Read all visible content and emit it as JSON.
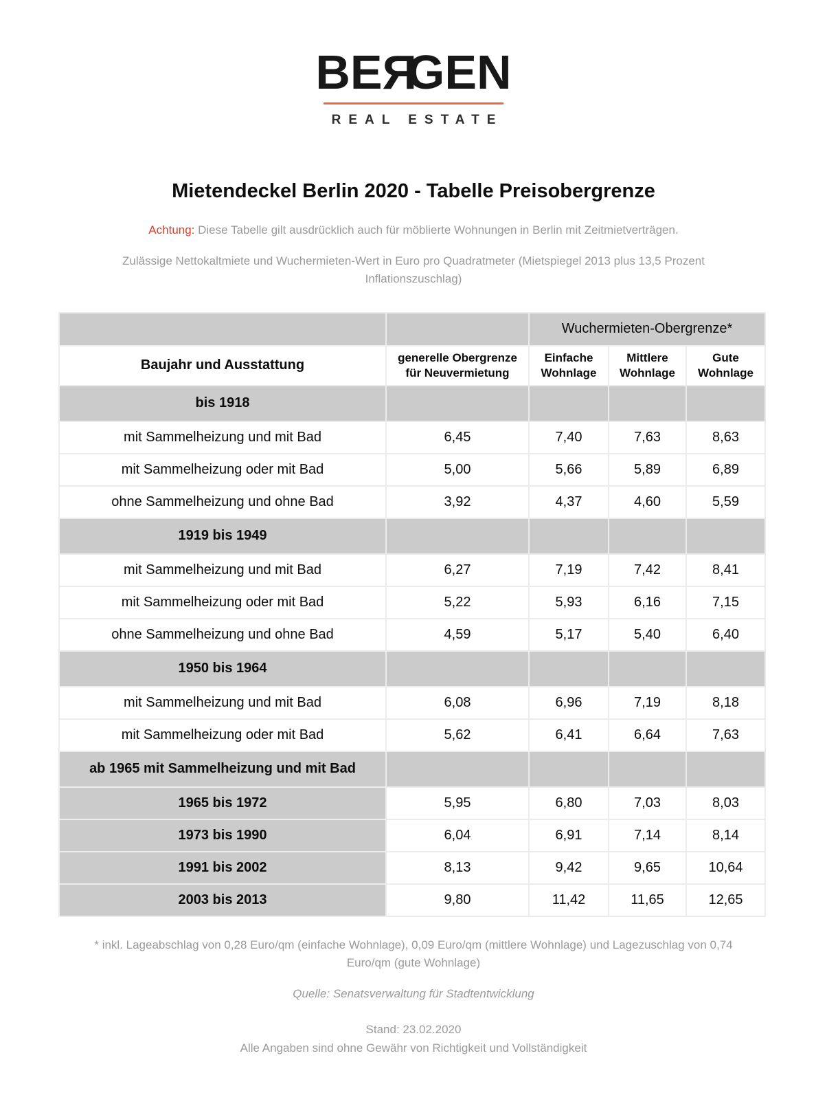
{
  "logo": {
    "part1": "BE",
    "part2": "Я",
    "part3": "GEN",
    "subtitle": "REAL ESTATE",
    "underline_color": "#ed6a45"
  },
  "header": {
    "title": "Mietendeckel Berlin 2020 - Tabelle Preisobergrenze",
    "warning_label": "Achtung:",
    "warning_text": " Diese Tabelle gilt ausdrücklich auch für möblierte Wohnungen in Berlin mit Zeitmietverträgen.",
    "subtitle": "Zulässige Nettokaltmiete und Wuchermieten-Wert in Euro pro Quadratmeter (Mietspiegel 2013 plus 13,5 Prozent Inflationszuschlag)",
    "warning_color": "#e63b25"
  },
  "table": {
    "group_header": "Wuchermieten-Obergrenze*",
    "header_bg": "#cbcbcb",
    "columns": [
      "Baujahr und Ausstattung",
      "generelle Obergrenze für Neuvermietung",
      "Einfache Wohnlage",
      "Mittlere Wohnlage",
      "Gute Wohnlage"
    ],
    "rows": [
      {
        "type": "section",
        "label": "bis 1918"
      },
      {
        "type": "data",
        "label": "mit Sammelheizung und mit Bad",
        "values": [
          "6,45",
          "7,40",
          "7,63",
          "8,63"
        ]
      },
      {
        "type": "data",
        "label": "mit Sammelheizung oder mit Bad",
        "values": [
          "5,00",
          "5,66",
          "5,89",
          "6,89"
        ]
      },
      {
        "type": "data",
        "label": "ohne Sammelheizung und ohne Bad",
        "values": [
          "3,92",
          "4,37",
          "4,60",
          "5,59"
        ]
      },
      {
        "type": "section",
        "label": "1919 bis 1949"
      },
      {
        "type": "data",
        "label": "mit Sammelheizung und mit Bad",
        "values": [
          "6,27",
          "7,19",
          "7,42",
          "8,41"
        ]
      },
      {
        "type": "data",
        "label": "mit Sammelheizung oder mit Bad",
        "values": [
          "5,22",
          "5,93",
          "6,16",
          "7,15"
        ]
      },
      {
        "type": "data",
        "label": "ohne Sammelheizung und ohne Bad",
        "values": [
          "4,59",
          "5,17",
          "5,40",
          "6,40"
        ]
      },
      {
        "type": "section",
        "label": "1950 bis 1964"
      },
      {
        "type": "data",
        "label": "mit Sammelheizung und mit Bad",
        "values": [
          "6,08",
          "6,96",
          "7,19",
          "8,18"
        ]
      },
      {
        "type": "data",
        "label": "mit Sammelheizung oder mit Bad",
        "values": [
          "5,62",
          "6,41",
          "6,64",
          "7,63"
        ]
      },
      {
        "type": "section",
        "label": "ab 1965 mit Sammelheizung und mit Bad"
      },
      {
        "type": "data",
        "label": "1965 bis 1972",
        "label_gray": true,
        "values": [
          "5,95",
          "6,80",
          "7,03",
          "8,03"
        ]
      },
      {
        "type": "data",
        "label": "1973 bis 1990",
        "label_gray": true,
        "values": [
          "6,04",
          "6,91",
          "7,14",
          "8,14"
        ]
      },
      {
        "type": "data",
        "label": "1991 bis 2002",
        "label_gray": true,
        "values": [
          "8,13",
          "9,42",
          "9,65",
          "10,64"
        ]
      },
      {
        "type": "data",
        "label": "2003 bis 2013",
        "label_gray": true,
        "values": [
          "9,80",
          "11,42",
          "11,65",
          "12,65"
        ]
      }
    ]
  },
  "footer": {
    "footnote": "* inkl. Lageabschlag von 0,28 Euro/qm (einfache Wohnlage), 0,09 Euro/qm (mittlere Wohnlage) und Lagezuschlag von 0,74 Euro/qm (gute Wohnlage)",
    "source": "Quelle: Senatsverwaltung für Stadtentwicklung",
    "date": "Stand: 23.02.2020",
    "disclaimer": "Alle Angaben sind ohne Gewähr von Richtigkeit und Vollständigkeit"
  }
}
